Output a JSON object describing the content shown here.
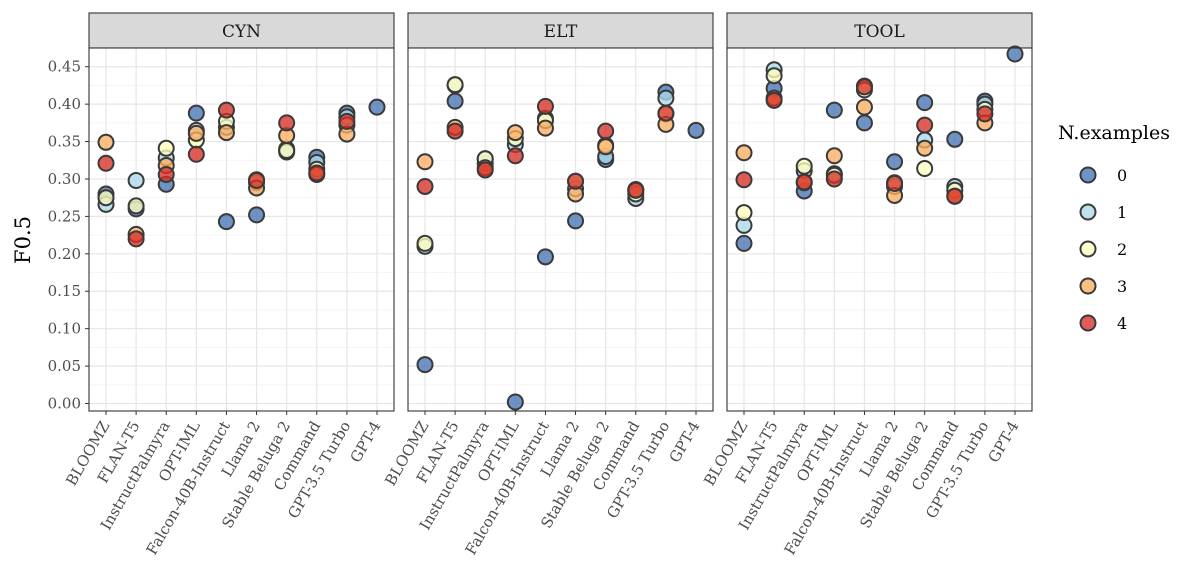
{
  "chart_data": {
    "type": "scatter",
    "ylabel": "F0.5",
    "xlabel": "",
    "ylim": [
      -0.01,
      0.475
    ],
    "yticks": [
      "0.00",
      "0.05",
      "0.10",
      "0.15",
      "0.20",
      "0.25",
      "0.30",
      "0.35",
      "0.40",
      "0.45"
    ],
    "grid": true,
    "legend": {
      "title": "N.examples",
      "placement": "right",
      "entries": [
        {
          "label": "0",
          "color": "#4575b4"
        },
        {
          "label": "1",
          "color": "#abd9e9"
        },
        {
          "label": "2",
          "color": "#ffffbf"
        },
        {
          "label": "3",
          "color": "#fdae61"
        },
        {
          "label": "4",
          "color": "#d73027"
        }
      ]
    },
    "categories": [
      "BLOOMZ",
      "FLAN-T5",
      "InstructPalmyra",
      "OPT-IML",
      "Falcon-40B-Instruct",
      "Llama 2",
      "Stable Beluga 2",
      "Command",
      "GPT-3.5 Turbo",
      "GPT-4"
    ],
    "panels": [
      {
        "name": "CYN",
        "series": [
          {
            "name": "0",
            "values": [
              0.28,
              0.26,
              0.293,
              0.388,
              0.243,
              0.252,
              0.34,
              0.329,
              0.388,
              0.396
            ]
          },
          {
            "name": "1",
            "values": [
              0.266,
              0.298,
              0.328,
              0.365,
              0.369,
              0.295,
              0.336,
              0.322,
              0.383,
              null
            ]
          },
          {
            "name": "2",
            "values": [
              0.275,
              0.264,
              0.341,
              0.352,
              0.377,
              0.299,
              0.338,
              0.313,
              0.372,
              null
            ]
          },
          {
            "name": "3",
            "values": [
              0.349,
              0.226,
              0.318,
              0.361,
              0.362,
              0.288,
              0.358,
              0.306,
              0.36,
              null
            ]
          },
          {
            "name": "4",
            "values": [
              0.321,
              0.22,
              0.306,
              0.333,
              0.392,
              0.298,
              0.375,
              0.308,
              0.377,
              null
            ]
          }
        ]
      },
      {
        "name": "ELT",
        "series": [
          {
            "name": "0",
            "values": [
              0.052,
              0.404,
              0.321,
              0.002,
              0.196,
              0.244,
              0.326,
              0.286,
              0.416,
              0.365
            ]
          },
          {
            "name": "1",
            "values": [
              0.21,
              0.425,
              0.327,
              0.346,
              0.381,
              0.287,
              0.33,
              0.274,
              0.408,
              null
            ]
          },
          {
            "name": "2",
            "values": [
              0.214,
              0.426,
              0.327,
              0.354,
              0.378,
              0.297,
              0.345,
              0.28,
              0.387,
              null
            ]
          },
          {
            "name": "3",
            "values": [
              0.323,
              0.369,
              0.315,
              0.362,
              0.368,
              0.28,
              0.343,
              0.285,
              0.373,
              null
            ]
          },
          {
            "name": "4",
            "values": [
              0.29,
              0.364,
              0.312,
              0.331,
              0.397,
              0.297,
              0.364,
              0.285,
              0.388,
              null
            ]
          }
        ]
      },
      {
        "name": "TOOL",
        "series": [
          {
            "name": "0",
            "values": [
              0.214,
              0.421,
              0.284,
              0.392,
              0.375,
              0.323,
              0.402,
              0.353,
              0.404,
              0.467
            ]
          },
          {
            "name": "1",
            "values": [
              0.238,
              0.446,
              0.311,
              0.307,
              0.424,
              0.29,
              0.352,
              0.29,
              0.4,
              null
            ]
          },
          {
            "name": "2",
            "values": [
              0.255,
              0.438,
              0.317,
              0.305,
              0.419,
              0.295,
              0.314,
              0.285,
              0.393,
              null
            ]
          },
          {
            "name": "3",
            "values": [
              0.335,
              0.408,
              0.295,
              0.331,
              0.396,
              0.278,
              0.341,
              0.277,
              0.375,
              null
            ]
          },
          {
            "name": "4",
            "values": [
              0.299,
              0.405,
              0.296,
              0.3,
              0.423,
              0.294,
              0.372,
              0.277,
              0.387,
              null
            ]
          }
        ]
      }
    ]
  }
}
